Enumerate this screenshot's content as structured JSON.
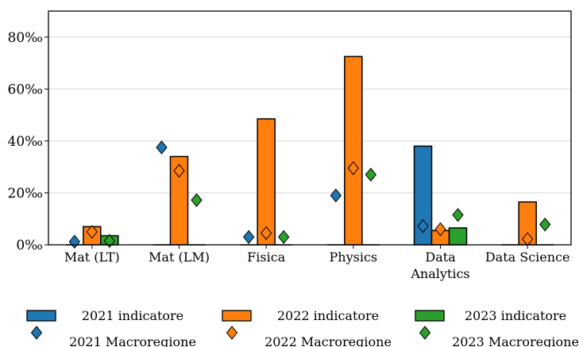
{
  "chart_data": {
    "type": "bar",
    "categories": [
      "Mat (LT)",
      "Mat (LM)",
      "Fisica",
      "Physics",
      "Data Analytics",
      "Data Science"
    ],
    "category_lines": [
      [
        "Mat (LT)"
      ],
      [
        "Mat (LM)"
      ],
      [
        "Fisica"
      ],
      [
        "Physics"
      ],
      [
        "Data",
        "Analytics"
      ],
      [
        "Data Science"
      ]
    ],
    "series": [
      {
        "name": "2021 indicatore",
        "kind": "bar",
        "color": "#1f77b4",
        "values": [
          0,
          0,
          0,
          0,
          38,
          0
        ]
      },
      {
        "name": "2022 indicatore",
        "kind": "bar",
        "color": "#ff7f0e",
        "values": [
          7,
          34,
          48.5,
          72.5,
          5.5,
          16.5
        ]
      },
      {
        "name": "2023 indicatore",
        "kind": "bar",
        "color": "#2ca02c",
        "values": [
          3.5,
          0,
          0,
          0,
          6.5,
          0
        ]
      },
      {
        "name": "2021 Macroregione",
        "kind": "marker",
        "color": "#1f77b4",
        "values": [
          1.2,
          37.5,
          3,
          19,
          7.2,
          null
        ]
      },
      {
        "name": "2022 Macroregione",
        "kind": "marker",
        "color": "#ff7f0e",
        "values": [
          5,
          28.5,
          4.5,
          29.5,
          6,
          2.2
        ]
      },
      {
        "name": "2023 Macroregione",
        "kind": "marker",
        "color": "#2ca02c",
        "values": [
          1.5,
          17.2,
          3,
          27,
          11.5,
          7.8
        ]
      }
    ],
    "ylim": [
      0,
      90
    ],
    "yticks": [
      0,
      20,
      40,
      60,
      80
    ],
    "ytick_labels": [
      "0‰",
      "20‰",
      "40‰",
      "60‰",
      "80‰"
    ],
    "grid": true,
    "legend_position": "bottom"
  }
}
